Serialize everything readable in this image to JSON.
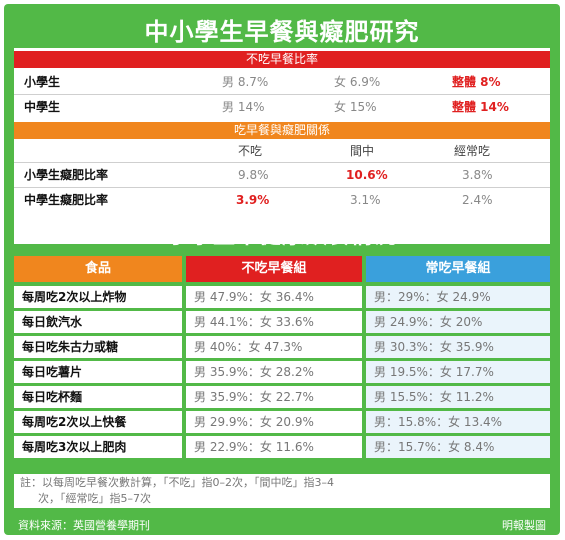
{
  "title1": "中小學生早餐與癡肥研究",
  "skip_rate": {
    "header": "不吃早餐比率",
    "rows": [
      {
        "label": "小學生",
        "male": "男 8.7%",
        "female": "女 6.9%",
        "total": "整體 8%"
      },
      {
        "label": "中學生",
        "male": "男 14%",
        "female": "女 15%",
        "total": "整體 14%"
      }
    ]
  },
  "obesity": {
    "header": "吃早餐與癡肥關係",
    "columns": [
      "不吃",
      "間中",
      "經常吃"
    ],
    "rows": [
      {
        "label": "小學生癡肥比率",
        "values": [
          "9.8%",
          "10.6%",
          "3.8%"
        ]
      },
      {
        "label": "中學生癡肥比率",
        "values": [
          "3.9%",
          "3.1%",
          "2.4%"
        ]
      }
    ]
  },
  "title2": "小學生不健康飲食情況",
  "diet": {
    "headers": [
      "食品",
      "不吃早餐組",
      "常吃早餐組"
    ],
    "rows": [
      {
        "item": "每周吃2次以上炸物",
        "skip": "男 47.9%：女 36.4%",
        "eat": "男：29%：女 24.9%"
      },
      {
        "item": "每日飲汽水",
        "skip": "男 44.1%：女 33.6%",
        "eat": "男 24.9%：女 20%"
      },
      {
        "item": "每日吃朱古力或糖",
        "skip": "男 40%：女 47.3%",
        "eat": "男 30.3%：女 35.9%"
      },
      {
        "item": "每日吃薯片",
        "skip": "男 35.9%：女 28.2%",
        "eat": "男 19.5%：女 17.7%"
      },
      {
        "item": "每日吃杯麵",
        "skip": "男 35.9%：女 22.7%",
        "eat": "男 15.5%：女 11.2%"
      },
      {
        "item": "每周吃2次以上快餐",
        "skip": "男 29.9%：女 20.9%",
        "eat": "男：15.8%：女 13.4%"
      },
      {
        "item": "每周吃3次以上肥肉",
        "skip": "男 22.9%：女 11.6%",
        "eat": "男：15.7%：女 8.4%"
      }
    ]
  },
  "note_line1": "註：以每周吃早餐次數計算，「不吃」指0–2次，「間中吃」指3–4",
  "note_line2": "次，「經常吃」指5–7次",
  "source": "資料來源：英國營養學期刊",
  "credit": "明報製圖",
  "colors": {
    "green": "#52b947",
    "red": "#e02020",
    "orange": "#f0861e",
    "blue": "#3aa0dc"
  }
}
